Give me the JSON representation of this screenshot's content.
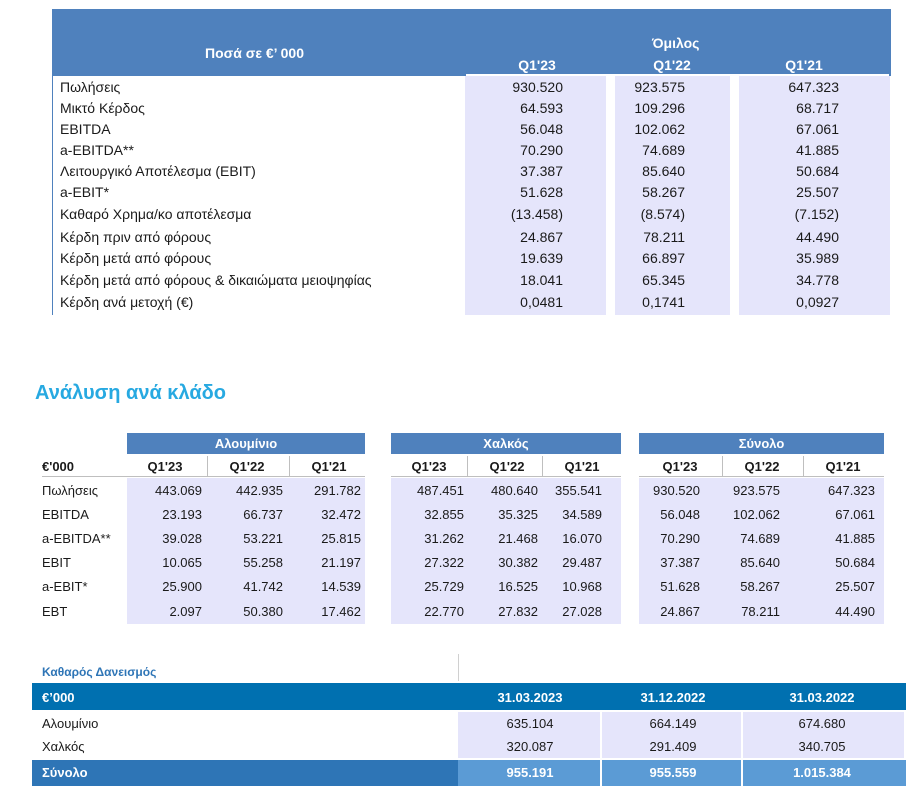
{
  "summary_table": {
    "amounts_label": "Ποσά  σε €’ 000",
    "group_label": "Όμιλος",
    "periods": [
      "Q1'23",
      "Q1'22",
      "Q1'21"
    ],
    "rows": [
      {
        "label": "Πωλήσεις",
        "values": [
          "930.520",
          "923.575",
          "647.323"
        ]
      },
      {
        "label": "Μικτό Κέρδος",
        "values": [
          "64.593",
          "109.296",
          "68.717"
        ]
      },
      {
        "label": "EBITDA",
        "values": [
          "56.048",
          "102.062",
          "67.061"
        ]
      },
      {
        "label": "a-EBITDA**",
        "values": [
          "70.290",
          "74.689",
          "41.885"
        ]
      },
      {
        "label": "Λειτουργικό Αποτέλεσμα (EBIT)",
        "values": [
          "37.387",
          "85.640",
          "50.684"
        ]
      },
      {
        "label": "a-EBIT*",
        "values": [
          "51.628",
          "58.267",
          "25.507"
        ]
      },
      {
        "label": "Καθαρό Χρημα/κο αποτέλεσμα",
        "values": [
          "(13.458)",
          "(8.574)",
          "(7.152)"
        ]
      },
      {
        "label": "Κέρδη πριν από φόρους",
        "values": [
          "24.867",
          "78.211",
          "44.490"
        ]
      },
      {
        "label": "Κέρδη μετά από φόρους",
        "values": [
          "19.639",
          "66.897",
          "35.989"
        ]
      },
      {
        "label": "Κέρδη μετά από φόρους & δικαιώματα μειοψηφίας",
        "values": [
          "18.041",
          "65.345",
          "34.778"
        ]
      },
      {
        "label": "Κέρδη ανά μετοχή (€)",
        "values": [
          "0,0481",
          "0,1741",
          "0,0927"
        ]
      }
    ]
  },
  "segment_title": "Ανάλυση ανά κλάδο",
  "segment_table": {
    "unit": "€'000",
    "groups": [
      "Αλουμίνιο",
      "Χαλκός",
      "Σύνολο"
    ],
    "periods": [
      "Q1'23",
      "Q1'22",
      "Q1'21"
    ],
    "rows": [
      {
        "label": "Πωλήσεις",
        "values": [
          "443.069",
          "442.935",
          "291.782",
          "487.451",
          "480.640",
          "355.541",
          "930.520",
          "923.575",
          "647.323"
        ]
      },
      {
        "label": "EBITDA",
        "values": [
          "23.193",
          "66.737",
          "32.472",
          "32.855",
          "35.325",
          "34.589",
          "56.048",
          "102.062",
          "67.061"
        ]
      },
      {
        "label": "a-EBITDA**",
        "values": [
          "39.028",
          "53.221",
          "25.815",
          "31.262",
          "21.468",
          "16.070",
          "70.290",
          "74.689",
          "41.885"
        ]
      },
      {
        "label": "EBIT",
        "values": [
          "10.065",
          "55.258",
          "21.197",
          "27.322",
          "30.382",
          "29.487",
          "37.387",
          "85.640",
          "50.684"
        ]
      },
      {
        "label": "a-EBIT*",
        "values": [
          "25.900",
          "41.742",
          "14.539",
          "25.729",
          "16.525",
          "10.968",
          "51.628",
          "58.267",
          "25.507"
        ]
      },
      {
        "label": "EBT",
        "values": [
          "2.097",
          "50.380",
          "17.462",
          "22.770",
          "27.832",
          "27.028",
          "24.867",
          "78.211",
          "44.490"
        ]
      }
    ]
  },
  "debt_table": {
    "title": "Καθαρός Δανεισμός",
    "unit": "€’000",
    "dates": [
      "31.03.2023",
      "31.12.2022",
      "31.03.2022"
    ],
    "rows": [
      {
        "label": "Αλουμίνιο",
        "values": [
          "635.104",
          "664.149",
          "674.680"
        ]
      },
      {
        "label": "Χαλκός",
        "values": [
          "320.087",
          "291.409",
          "340.705"
        ]
      }
    ],
    "total": {
      "label": "Σύνολο",
      "values": [
        "955.191",
        "955.559",
        "1.015.384"
      ]
    }
  },
  "colors": {
    "header_blue": "#4f81bd",
    "value_column_bg": "#e5e5fb",
    "section_title": "#27a9e1",
    "debt_band": "#0070b0",
    "debt_total": "#2e75b6"
  }
}
